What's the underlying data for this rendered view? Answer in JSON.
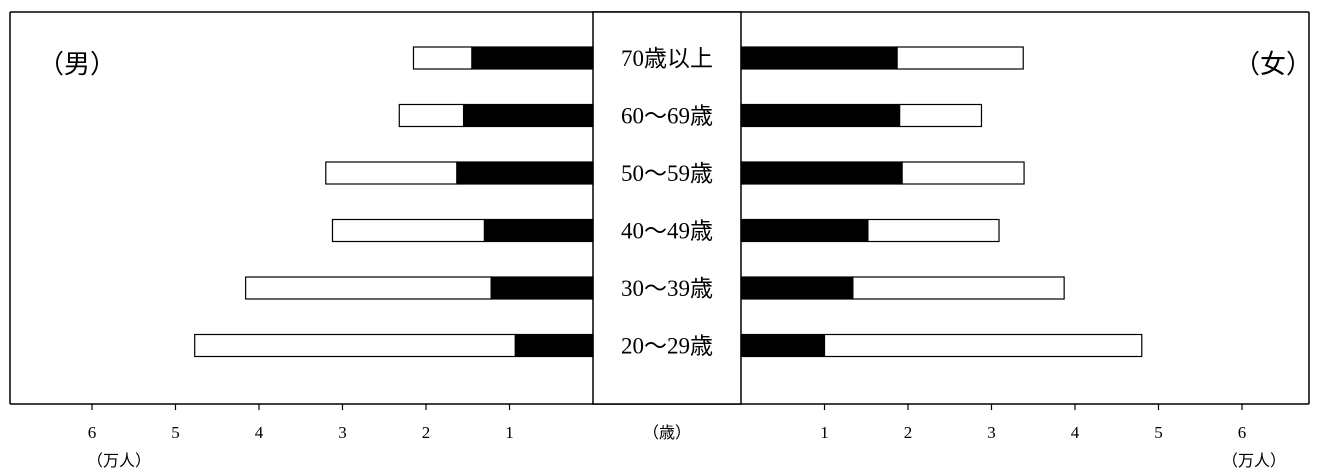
{
  "chart_data": {
    "type": "bar",
    "subtype": "population-pyramid-stacked",
    "categories": [
      "70歳以上",
      "60～69歳",
      "50～59歳",
      "40～49歳",
      "30～39歳",
      "20～29歳"
    ],
    "left_panel": {
      "label": "（男）",
      "filled_values": [
        1.45,
        1.55,
        1.63,
        1.3,
        1.22,
        0.93
      ],
      "total_values": [
        2.15,
        2.32,
        3.2,
        3.12,
        4.16,
        4.77
      ]
    },
    "right_panel": {
      "label": "（女）",
      "filled_values": [
        1.87,
        1.9,
        1.93,
        1.52,
        1.34,
        1.0
      ],
      "total_values": [
        3.38,
        2.88,
        3.39,
        3.09,
        3.87,
        4.8
      ]
    },
    "x_ticks": [
      "1",
      "2",
      "3",
      "4",
      "5",
      "6"
    ],
    "x_unit": "（万人）",
    "center_axis_label": "（歳）",
    "xlim": [
      0,
      6
    ],
    "colors": {
      "filled": "#000000",
      "remainder": "#ffffff",
      "frame": "#000000"
    }
  }
}
